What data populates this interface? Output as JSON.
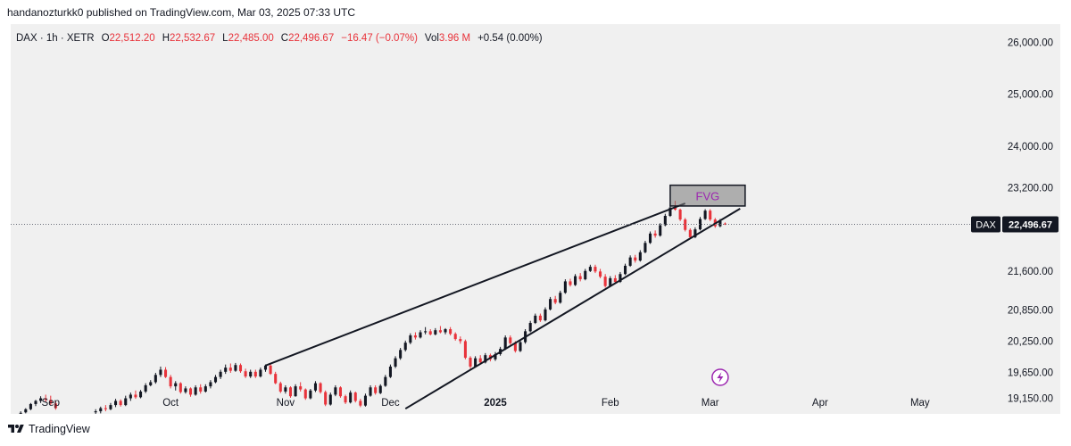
{
  "header": {
    "publisher_line": "handanozturkk0 published on TradingView.com, Mar 03, 2025 07:33 UTC"
  },
  "legend": {
    "symbol": "DAX · 1h · XETR",
    "open_label": "O",
    "open": "22,512.20",
    "high_label": "H",
    "high": "22,532.67",
    "low_label": "L",
    "low": "22,485.00",
    "close_label": "C",
    "close": "22,496.67",
    "change": "−16.47 (−0.07%)",
    "vol_label": "Vol",
    "vol": "3.96 M",
    "extra": "+0.54 (0.00%)"
  },
  "footer": {
    "brand": "TradingView"
  },
  "colors": {
    "up": "#131722",
    "down": "#e8333b",
    "accent": "#9c27b0",
    "trend": "#131722"
  },
  "chart_data": {
    "type": "candlestick",
    "symbol": "DAX",
    "price_tag": {
      "label": "DAX",
      "value": "22,496.67",
      "price": 22496.67
    },
    "y_ticks": [
      {
        "value": 26000,
        "label": "26,000.00"
      },
      {
        "value": 25000,
        "label": "25,000.00"
      },
      {
        "value": 24000,
        "label": "24,000.00"
      },
      {
        "value": 23200,
        "label": "23,200.00"
      },
      {
        "value": 21600,
        "label": "21,600.00"
      },
      {
        "value": 20850,
        "label": "20,850.00"
      },
      {
        "value": 20250,
        "label": "20,250.00"
      },
      {
        "value": 19650,
        "label": "19,650.00"
      },
      {
        "value": 19150,
        "label": "19,150.00"
      }
    ],
    "x_ticks": [
      {
        "label": "Sep",
        "index": 6,
        "bold": false
      },
      {
        "label": "Oct",
        "index": 30,
        "bold": false
      },
      {
        "label": "Nov",
        "index": 53,
        "bold": false
      },
      {
        "label": "Dec",
        "index": 74,
        "bold": false
      },
      {
        "label": "2025",
        "index": 95,
        "bold": true
      },
      {
        "label": "Feb",
        "index": 118,
        "bold": false
      },
      {
        "label": "Mar",
        "index": 138,
        "bold": false
      },
      {
        "label": "Apr",
        "index": 160,
        "bold": false
      },
      {
        "label": "May",
        "index": 180,
        "bold": false
      }
    ],
    "candles": [
      {
        "i": 0,
        "o": 18860,
        "h": 18900,
        "l": 18820,
        "c": 18870
      },
      {
        "i": 1,
        "o": 18880,
        "h": 18960,
        "l": 18860,
        "c": 18940
      },
      {
        "i": 2,
        "o": 18940,
        "h": 19060,
        "l": 18920,
        "c": 19040
      },
      {
        "i": 3,
        "o": 19040,
        "h": 19120,
        "l": 19000,
        "c": 19100
      },
      {
        "i": 4,
        "o": 19100,
        "h": 19190,
        "l": 19060,
        "c": 19150
      },
      {
        "i": 5,
        "o": 19150,
        "h": 19220,
        "l": 19080,
        "c": 19120
      },
      {
        "i": 6,
        "o": 19120,
        "h": 19200,
        "l": 19020,
        "c": 19050
      },
      {
        "i": 7,
        "o": 19050,
        "h": 19100,
        "l": 18930,
        "c": 18960
      },
      {
        "i": 15,
        "o": 18880,
        "h": 18940,
        "l": 18820,
        "c": 18900
      },
      {
        "i": 16,
        "o": 18900,
        "h": 18990,
        "l": 18860,
        "c": 18960
      },
      {
        "i": 17,
        "o": 18960,
        "h": 19020,
        "l": 18900,
        "c": 18940
      },
      {
        "i": 18,
        "o": 18940,
        "h": 19060,
        "l": 18920,
        "c": 19020
      },
      {
        "i": 19,
        "o": 19020,
        "h": 19140,
        "l": 18980,
        "c": 19100
      },
      {
        "i": 20,
        "o": 19100,
        "h": 19130,
        "l": 18990,
        "c": 19020
      },
      {
        "i": 21,
        "o": 19020,
        "h": 19200,
        "l": 19000,
        "c": 19150
      },
      {
        "i": 22,
        "o": 19150,
        "h": 19260,
        "l": 19100,
        "c": 19220
      },
      {
        "i": 23,
        "o": 19220,
        "h": 19300,
        "l": 19140,
        "c": 19170
      },
      {
        "i": 24,
        "o": 19170,
        "h": 19310,
        "l": 19150,
        "c": 19280
      },
      {
        "i": 25,
        "o": 19280,
        "h": 19440,
        "l": 19250,
        "c": 19400
      },
      {
        "i": 26,
        "o": 19400,
        "h": 19500,
        "l": 19380,
        "c": 19460
      },
      {
        "i": 27,
        "o": 19460,
        "h": 19640,
        "l": 19430,
        "c": 19600
      },
      {
        "i": 28,
        "o": 19600,
        "h": 19760,
        "l": 19560,
        "c": 19700
      },
      {
        "i": 29,
        "o": 19700,
        "h": 19750,
        "l": 19540,
        "c": 19560
      },
      {
        "i": 30,
        "o": 19560,
        "h": 19600,
        "l": 19340,
        "c": 19380
      },
      {
        "i": 31,
        "o": 19380,
        "h": 19480,
        "l": 19300,
        "c": 19440
      },
      {
        "i": 32,
        "o": 19440,
        "h": 19460,
        "l": 19240,
        "c": 19270
      },
      {
        "i": 33,
        "o": 19270,
        "h": 19380,
        "l": 19240,
        "c": 19340
      },
      {
        "i": 34,
        "o": 19340,
        "h": 19360,
        "l": 19180,
        "c": 19220
      },
      {
        "i": 35,
        "o": 19220,
        "h": 19400,
        "l": 19200,
        "c": 19360
      },
      {
        "i": 36,
        "o": 19360,
        "h": 19420,
        "l": 19240,
        "c": 19280
      },
      {
        "i": 37,
        "o": 19280,
        "h": 19420,
        "l": 19260,
        "c": 19380
      },
      {
        "i": 38,
        "o": 19380,
        "h": 19500,
        "l": 19340,
        "c": 19460
      },
      {
        "i": 39,
        "o": 19460,
        "h": 19600,
        "l": 19440,
        "c": 19560
      },
      {
        "i": 40,
        "o": 19560,
        "h": 19700,
        "l": 19520,
        "c": 19660
      },
      {
        "i": 41,
        "o": 19660,
        "h": 19800,
        "l": 19620,
        "c": 19740
      },
      {
        "i": 42,
        "o": 19740,
        "h": 19820,
        "l": 19640,
        "c": 19680
      },
      {
        "i": 43,
        "o": 19680,
        "h": 19830,
        "l": 19660,
        "c": 19790
      },
      {
        "i": 44,
        "o": 19790,
        "h": 19820,
        "l": 19640,
        "c": 19670
      },
      {
        "i": 45,
        "o": 19670,
        "h": 19720,
        "l": 19540,
        "c": 19570
      },
      {
        "i": 46,
        "o": 19570,
        "h": 19700,
        "l": 19540,
        "c": 19660
      },
      {
        "i": 47,
        "o": 19660,
        "h": 19700,
        "l": 19540,
        "c": 19570
      },
      {
        "i": 48,
        "o": 19570,
        "h": 19740,
        "l": 19550,
        "c": 19700
      },
      {
        "i": 49,
        "o": 19700,
        "h": 19800,
        "l": 19660,
        "c": 19780
      },
      {
        "i": 50,
        "o": 19780,
        "h": 19820,
        "l": 19600,
        "c": 19620
      },
      {
        "i": 51,
        "o": 19620,
        "h": 19660,
        "l": 19420,
        "c": 19440
      },
      {
        "i": 52,
        "o": 19440,
        "h": 19470,
        "l": 19250,
        "c": 19280
      },
      {
        "i": 53,
        "o": 19280,
        "h": 19400,
        "l": 19240,
        "c": 19360
      },
      {
        "i": 54,
        "o": 19360,
        "h": 19380,
        "l": 19160,
        "c": 19190
      },
      {
        "i": 55,
        "o": 19190,
        "h": 19420,
        "l": 19180,
        "c": 19380
      },
      {
        "i": 56,
        "o": 19380,
        "h": 19460,
        "l": 19280,
        "c": 19320
      },
      {
        "i": 57,
        "o": 19320,
        "h": 19340,
        "l": 19120,
        "c": 19150
      },
      {
        "i": 58,
        "o": 19150,
        "h": 19330,
        "l": 19130,
        "c": 19300
      },
      {
        "i": 59,
        "o": 19300,
        "h": 19480,
        "l": 19270,
        "c": 19440
      },
      {
        "i": 60,
        "o": 19440,
        "h": 19460,
        "l": 19240,
        "c": 19270
      },
      {
        "i": 61,
        "o": 19270,
        "h": 19300,
        "l": 19000,
        "c": 19030
      },
      {
        "i": 62,
        "o": 19030,
        "h": 19260,
        "l": 19010,
        "c": 19220
      },
      {
        "i": 63,
        "o": 19220,
        "h": 19400,
        "l": 19190,
        "c": 19360
      },
      {
        "i": 64,
        "o": 19360,
        "h": 19380,
        "l": 19160,
        "c": 19190
      },
      {
        "i": 65,
        "o": 19190,
        "h": 19220,
        "l": 19040,
        "c": 19070
      },
      {
        "i": 66,
        "o": 19070,
        "h": 19300,
        "l": 19050,
        "c": 19260
      },
      {
        "i": 67,
        "o": 19260,
        "h": 19280,
        "l": 19070,
        "c": 19100
      },
      {
        "i": 68,
        "o": 19100,
        "h": 19140,
        "l": 18980,
        "c": 19010
      },
      {
        "i": 69,
        "o": 19010,
        "h": 19240,
        "l": 18990,
        "c": 19200
      },
      {
        "i": 70,
        "o": 19200,
        "h": 19400,
        "l": 19180,
        "c": 19360
      },
      {
        "i": 71,
        "o": 19360,
        "h": 19400,
        "l": 19220,
        "c": 19250
      },
      {
        "i": 72,
        "o": 19250,
        "h": 19420,
        "l": 19230,
        "c": 19390
      },
      {
        "i": 73,
        "o": 19390,
        "h": 19600,
        "l": 19370,
        "c": 19560
      },
      {
        "i": 74,
        "o": 19560,
        "h": 19800,
        "l": 19540,
        "c": 19760
      },
      {
        "i": 75,
        "o": 19760,
        "h": 19960,
        "l": 19730,
        "c": 19920
      },
      {
        "i": 76,
        "o": 19920,
        "h": 20120,
        "l": 19890,
        "c": 20080
      },
      {
        "i": 77,
        "o": 20080,
        "h": 20260,
        "l": 20050,
        "c": 20220
      },
      {
        "i": 78,
        "o": 20220,
        "h": 20400,
        "l": 20190,
        "c": 20360
      },
      {
        "i": 79,
        "o": 20360,
        "h": 20420,
        "l": 20280,
        "c": 20320
      },
      {
        "i": 80,
        "o": 20320,
        "h": 20460,
        "l": 20300,
        "c": 20420
      },
      {
        "i": 81,
        "o": 20420,
        "h": 20520,
        "l": 20380,
        "c": 20440
      },
      {
        "i": 82,
        "o": 20440,
        "h": 20480,
        "l": 20360,
        "c": 20380
      },
      {
        "i": 83,
        "o": 20380,
        "h": 20500,
        "l": 20360,
        "c": 20460
      },
      {
        "i": 84,
        "o": 20460,
        "h": 20540,
        "l": 20400,
        "c": 20420
      },
      {
        "i": 85,
        "o": 20420,
        "h": 20500,
        "l": 20380,
        "c": 20480
      },
      {
        "i": 86,
        "o": 20480,
        "h": 20520,
        "l": 20360,
        "c": 20390
      },
      {
        "i": 87,
        "o": 20390,
        "h": 20420,
        "l": 20260,
        "c": 20290
      },
      {
        "i": 88,
        "o": 20290,
        "h": 20340,
        "l": 20200,
        "c": 20250
      },
      {
        "i": 89,
        "o": 20250,
        "h": 20280,
        "l": 19900,
        "c": 19930
      },
      {
        "i": 90,
        "o": 19930,
        "h": 19960,
        "l": 19720,
        "c": 19760
      },
      {
        "i": 91,
        "o": 19760,
        "h": 19960,
        "l": 19740,
        "c": 19920
      },
      {
        "i": 92,
        "o": 19920,
        "h": 19980,
        "l": 19800,
        "c": 19840
      },
      {
        "i": 93,
        "o": 19840,
        "h": 20020,
        "l": 19820,
        "c": 19980
      },
      {
        "i": 94,
        "o": 19980,
        "h": 20010,
        "l": 19860,
        "c": 19900
      },
      {
        "i": 95,
        "o": 19900,
        "h": 20040,
        "l": 19870,
        "c": 20000
      },
      {
        "i": 96,
        "o": 20000,
        "h": 20140,
        "l": 19970,
        "c": 20100
      },
      {
        "i": 97,
        "o": 20100,
        "h": 20360,
        "l": 20080,
        "c": 20320
      },
      {
        "i": 98,
        "o": 20320,
        "h": 20360,
        "l": 20180,
        "c": 20210
      },
      {
        "i": 99,
        "o": 20210,
        "h": 20250,
        "l": 20030,
        "c": 20060
      },
      {
        "i": 100,
        "o": 20060,
        "h": 20260,
        "l": 20040,
        "c": 20230
      },
      {
        "i": 101,
        "o": 20230,
        "h": 20480,
        "l": 20200,
        "c": 20440
      },
      {
        "i": 102,
        "o": 20440,
        "h": 20640,
        "l": 20420,
        "c": 20600
      },
      {
        "i": 103,
        "o": 20600,
        "h": 20780,
        "l": 20580,
        "c": 20740
      },
      {
        "i": 104,
        "o": 20740,
        "h": 20780,
        "l": 20620,
        "c": 20650
      },
      {
        "i": 105,
        "o": 20650,
        "h": 20900,
        "l": 20630,
        "c": 20860
      },
      {
        "i": 106,
        "o": 20860,
        "h": 21100,
        "l": 20840,
        "c": 21060
      },
      {
        "i": 107,
        "o": 21060,
        "h": 21120,
        "l": 20960,
        "c": 20990
      },
      {
        "i": 108,
        "o": 20990,
        "h": 21220,
        "l": 20970,
        "c": 21180
      },
      {
        "i": 109,
        "o": 21180,
        "h": 21440,
        "l": 21160,
        "c": 21400
      },
      {
        "i": 110,
        "o": 21400,
        "h": 21450,
        "l": 21300,
        "c": 21330
      },
      {
        "i": 111,
        "o": 21330,
        "h": 21540,
        "l": 21310,
        "c": 21500
      },
      {
        "i": 112,
        "o": 21500,
        "h": 21560,
        "l": 21400,
        "c": 21440
      },
      {
        "i": 113,
        "o": 21440,
        "h": 21640,
        "l": 21420,
        "c": 21600
      },
      {
        "i": 114,
        "o": 21600,
        "h": 21720,
        "l": 21580,
        "c": 21680
      },
      {
        "i": 115,
        "o": 21680,
        "h": 21720,
        "l": 21560,
        "c": 21590
      },
      {
        "i": 116,
        "o": 21590,
        "h": 21640,
        "l": 21460,
        "c": 21490
      },
      {
        "i": 117,
        "o": 21490,
        "h": 21540,
        "l": 21280,
        "c": 21310
      },
      {
        "i": 118,
        "o": 21310,
        "h": 21500,
        "l": 21290,
        "c": 21460
      },
      {
        "i": 119,
        "o": 21460,
        "h": 21520,
        "l": 21360,
        "c": 21390
      },
      {
        "i": 120,
        "o": 21390,
        "h": 21580,
        "l": 21370,
        "c": 21540
      },
      {
        "i": 121,
        "o": 21540,
        "h": 21740,
        "l": 21520,
        "c": 21700
      },
      {
        "i": 122,
        "o": 21700,
        "h": 21900,
        "l": 21680,
        "c": 21860
      },
      {
        "i": 123,
        "o": 21860,
        "h": 21910,
        "l": 21760,
        "c": 21800
      },
      {
        "i": 124,
        "o": 21800,
        "h": 22000,
        "l": 21780,
        "c": 21960
      },
      {
        "i": 125,
        "o": 21960,
        "h": 22180,
        "l": 21940,
        "c": 22140
      },
      {
        "i": 126,
        "o": 22140,
        "h": 22360,
        "l": 22120,
        "c": 22320
      },
      {
        "i": 127,
        "o": 22320,
        "h": 22380,
        "l": 22240,
        "c": 22280
      },
      {
        "i": 128,
        "o": 22280,
        "h": 22520,
        "l": 22260,
        "c": 22480
      },
      {
        "i": 129,
        "o": 22480,
        "h": 22700,
        "l": 22460,
        "c": 22660
      },
      {
        "i": 130,
        "o": 22660,
        "h": 22860,
        "l": 22640,
        "c": 22820
      },
      {
        "i": 131,
        "o": 22820,
        "h": 22950,
        "l": 22760,
        "c": 22780
      },
      {
        "i": 132,
        "o": 22780,
        "h": 22800,
        "l": 22560,
        "c": 22590
      },
      {
        "i": 133,
        "o": 22590,
        "h": 22620,
        "l": 22360,
        "c": 22390
      },
      {
        "i": 134,
        "o": 22390,
        "h": 22420,
        "l": 22220,
        "c": 22250
      },
      {
        "i": 135,
        "o": 22250,
        "h": 22440,
        "l": 22230,
        "c": 22400
      },
      {
        "i": 136,
        "o": 22400,
        "h": 22640,
        "l": 22380,
        "c": 22600
      },
      {
        "i": 137,
        "o": 22600,
        "h": 22790,
        "l": 22580,
        "c": 22760
      },
      {
        "i": 138,
        "o": 22760,
        "h": 22790,
        "l": 22560,
        "c": 22590
      },
      {
        "i": 139,
        "o": 22590,
        "h": 22620,
        "l": 22430,
        "c": 22460
      },
      {
        "i": 140,
        "o": 22460,
        "h": 22600,
        "l": 22440,
        "c": 22560
      },
      {
        "i": 141,
        "o": 22512.2,
        "h": 22532.67,
        "l": 22485,
        "c": 22496.67
      }
    ],
    "annotations": {
      "fvg_box": {
        "label": "FVG",
        "i1": 130,
        "i2": 145,
        "p_low": 22850,
        "p_high": 23250
      },
      "upper_trendline": {
        "i1": 49,
        "p1": 19780,
        "i2": 133,
        "p2": 22900
      },
      "lower_trendline": {
        "i1": 77,
        "p1": 18950,
        "i2": 144,
        "p2": 22800
      }
    },
    "y_range": [
      18850,
      26350
    ],
    "x_range": [
      -2,
      192
    ]
  }
}
